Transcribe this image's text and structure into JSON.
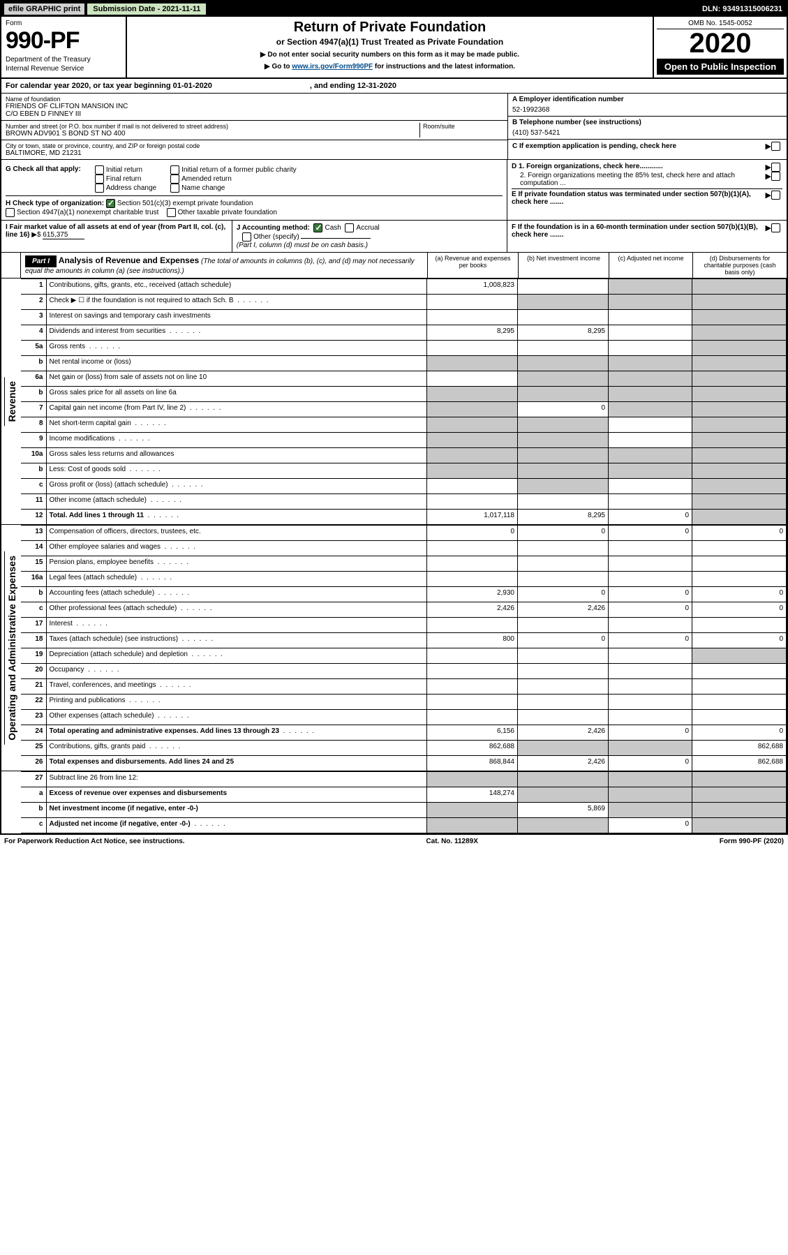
{
  "top": {
    "efile": "efile GRAPHIC print",
    "subdate_label": "Submission Date - 2021-11-11",
    "dln": "DLN: 93491315006231"
  },
  "header": {
    "form_label": "Form",
    "form_number": "990-PF",
    "dept": "Department of the Treasury",
    "irs": "Internal Revenue Service",
    "title": "Return of Private Foundation",
    "subtitle": "or Section 4947(a)(1) Trust Treated as Private Foundation",
    "note1": "▶ Do not enter social security numbers on this form as it may be made public.",
    "note2_pre": "▶ Go to ",
    "note2_link": "www.irs.gov/Form990PF",
    "note2_post": " for instructions and the latest information.",
    "omb": "OMB No. 1545-0052",
    "year": "2020",
    "open": "Open to Public Inspection"
  },
  "cal": {
    "line": "For calendar year 2020, or tax year beginning 01-01-2020",
    "ending": ", and ending 12-31-2020"
  },
  "entity": {
    "name_lbl": "Name of foundation",
    "name1": "FRIENDS OF CLIFTON MANSION INC",
    "name2": "C/O EBEN D FINNEY III",
    "addr_lbl": "Number and street (or P.O. box number if mail is not delivered to street address)",
    "addr": "BROWN ADV901 S BOND ST NO 400",
    "room_lbl": "Room/suite",
    "city_lbl": "City or town, state or province, country, and ZIP or foreign postal code",
    "city": "BALTIMORE, MD  21231",
    "ein_lbl": "A Employer identification number",
    "ein": "52-1992368",
    "tel_lbl": "B Telephone number (see instructions)",
    "tel": "(410) 537-5421",
    "c_lbl": "C If exemption application is pending, check here",
    "d1": "D 1. Foreign organizations, check here............",
    "d2": "2. Foreign organizations meeting the 85% test, check here and attach computation ...",
    "e": "E  If private foundation status was terminated under section 507(b)(1)(A), check here .......",
    "f": "F  If the foundation is in a 60-month termination under section 507(b)(1)(B), check here ......."
  },
  "g": {
    "label": "G Check all that apply:",
    "initial": "Initial return",
    "final": "Final return",
    "address": "Address change",
    "initial_former": "Initial return of a former public charity",
    "amended": "Amended return",
    "name": "Name change"
  },
  "h": {
    "label": "H Check type of organization:",
    "s501": "Section 501(c)(3) exempt private foundation",
    "s4947": "Section 4947(a)(1) nonexempt charitable trust",
    "other_tax": "Other taxable private foundation"
  },
  "i": {
    "label": "I Fair market value of all assets at end of year (from Part II, col. (c), line 16)",
    "val": "615,375"
  },
  "j": {
    "label": "J Accounting method:",
    "cash": "Cash",
    "accrual": "Accrual",
    "other": "Other (specify)",
    "note": "(Part I, column (d) must be on cash basis.)"
  },
  "part1": {
    "label": "Part I",
    "title": "Analysis of Revenue and Expenses",
    "note": " (The total of amounts in columns (b), (c), and (d) may not necessarily equal the amounts in column (a) (see instructions).)",
    "col_a": "(a)   Revenue and expenses per books",
    "col_b": "(b)   Net investment income",
    "col_c": "(c)   Adjusted net income",
    "col_d": "(d)  Disbursements for charitable purposes (cash basis only)"
  },
  "side": {
    "rev": "Revenue",
    "exp": "Operating and Administrative Expenses"
  },
  "rows": [
    {
      "n": "1",
      "d": "Contributions, gifts, grants, etc., received (attach schedule)",
      "a": "1,008,823",
      "b": "",
      "c": "grey",
      "dd": "grey"
    },
    {
      "n": "2",
      "d": "Check ▶ ☐ if the foundation is not required to attach Sch. B",
      "a": "",
      "b": "grey",
      "c": "grey",
      "dd": "grey",
      "dots": true
    },
    {
      "n": "3",
      "d": "Interest on savings and temporary cash investments",
      "a": "",
      "b": "",
      "c": "",
      "dd": "grey"
    },
    {
      "n": "4",
      "d": "Dividends and interest from securities",
      "a": "8,295",
      "b": "8,295",
      "c": "",
      "dd": "grey",
      "dots": true
    },
    {
      "n": "5a",
      "d": "Gross rents",
      "a": "",
      "b": "",
      "c": "",
      "dd": "grey",
      "dots": true
    },
    {
      "n": "b",
      "d": "Net rental income or (loss)",
      "a": "grey",
      "b": "grey",
      "c": "grey",
      "dd": "grey",
      "half": true
    },
    {
      "n": "6a",
      "d": "Net gain or (loss) from sale of assets not on line 10",
      "a": "",
      "b": "grey",
      "c": "grey",
      "dd": "grey"
    },
    {
      "n": "b",
      "d": "Gross sales price for all assets on line 6a",
      "a": "grey",
      "b": "grey",
      "c": "grey",
      "dd": "grey",
      "half": true
    },
    {
      "n": "7",
      "d": "Capital gain net income (from Part IV, line 2)",
      "a": "grey",
      "b": "0",
      "c": "grey",
      "dd": "grey",
      "dots": true
    },
    {
      "n": "8",
      "d": "Net short-term capital gain",
      "a": "grey",
      "b": "grey",
      "c": "",
      "dd": "grey",
      "dots": true
    },
    {
      "n": "9",
      "d": "Income modifications",
      "a": "grey",
      "b": "grey",
      "c": "",
      "dd": "grey",
      "dots": true
    },
    {
      "n": "10a",
      "d": "Gross sales less returns and allowances",
      "a": "grey",
      "b": "grey",
      "c": "grey",
      "dd": "grey",
      "half": true
    },
    {
      "n": "b",
      "d": "Less: Cost of goods sold",
      "a": "grey",
      "b": "grey",
      "c": "grey",
      "dd": "grey",
      "half": true,
      "dots": true
    },
    {
      "n": "c",
      "d": "Gross profit or (loss) (attach schedule)",
      "a": "",
      "b": "grey",
      "c": "",
      "dd": "grey",
      "dots": true
    },
    {
      "n": "11",
      "d": "Other income (attach schedule)",
      "a": "",
      "b": "",
      "c": "",
      "dd": "grey",
      "dots": true
    },
    {
      "n": "12",
      "d": "Total. Add lines 1 through 11",
      "a": "1,017,118",
      "b": "8,295",
      "c": "0",
      "dd": "grey",
      "bold": true,
      "dots": true
    }
  ],
  "exp_rows": [
    {
      "n": "13",
      "d": "Compensation of officers, directors, trustees, etc.",
      "a": "0",
      "b": "0",
      "c": "0",
      "dd": "0"
    },
    {
      "n": "14",
      "d": "Other employee salaries and wages",
      "a": "",
      "b": "",
      "c": "",
      "dd": "",
      "dots": true
    },
    {
      "n": "15",
      "d": "Pension plans, employee benefits",
      "a": "",
      "b": "",
      "c": "",
      "dd": "",
      "dots": true
    },
    {
      "n": "16a",
      "d": "Legal fees (attach schedule)",
      "a": "",
      "b": "",
      "c": "",
      "dd": "",
      "dots": true
    },
    {
      "n": "b",
      "d": "Accounting fees (attach schedule)",
      "a": "2,930",
      "b": "0",
      "c": "0",
      "dd": "0",
      "dots": true
    },
    {
      "n": "c",
      "d": "Other professional fees (attach schedule)",
      "a": "2,426",
      "b": "2,426",
      "c": "0",
      "dd": "0",
      "dots": true
    },
    {
      "n": "17",
      "d": "Interest",
      "a": "",
      "b": "",
      "c": "",
      "dd": "",
      "dots": true
    },
    {
      "n": "18",
      "d": "Taxes (attach schedule) (see instructions)",
      "a": "800",
      "b": "0",
      "c": "0",
      "dd": "0",
      "dots": true
    },
    {
      "n": "19",
      "d": "Depreciation (attach schedule) and depletion",
      "a": "",
      "b": "",
      "c": "",
      "dd": "grey",
      "dots": true
    },
    {
      "n": "20",
      "d": "Occupancy",
      "a": "",
      "b": "",
      "c": "",
      "dd": "",
      "dots": true
    },
    {
      "n": "21",
      "d": "Travel, conferences, and meetings",
      "a": "",
      "b": "",
      "c": "",
      "dd": "",
      "dots": true
    },
    {
      "n": "22",
      "d": "Printing and publications",
      "a": "",
      "b": "",
      "c": "",
      "dd": "",
      "dots": true
    },
    {
      "n": "23",
      "d": "Other expenses (attach schedule)",
      "a": "",
      "b": "",
      "c": "",
      "dd": "",
      "dots": true
    },
    {
      "n": "24",
      "d": "Total operating and administrative expenses. Add lines 13 through 23",
      "a": "6,156",
      "b": "2,426",
      "c": "0",
      "dd": "0",
      "bold": true,
      "dots": true
    },
    {
      "n": "25",
      "d": "Contributions, gifts, grants paid",
      "a": "862,688",
      "b": "grey",
      "c": "grey",
      "dd": "862,688",
      "dots": true
    },
    {
      "n": "26",
      "d": "Total expenses and disbursements. Add lines 24 and 25",
      "a": "868,844",
      "b": "2,426",
      "c": "0",
      "dd": "862,688",
      "bold": true
    }
  ],
  "rows27": [
    {
      "n": "27",
      "d": "Subtract line 26 from line 12:",
      "a": "grey",
      "b": "grey",
      "c": "grey",
      "dd": "grey"
    },
    {
      "n": "a",
      "d": "Excess of revenue over expenses and disbursements",
      "a": "148,274",
      "b": "grey",
      "c": "grey",
      "dd": "grey",
      "bold": true
    },
    {
      "n": "b",
      "d": "Net investment income (if negative, enter -0-)",
      "a": "grey",
      "b": "5,869",
      "c": "grey",
      "dd": "grey",
      "bold": true
    },
    {
      "n": "c",
      "d": "Adjusted net income (if negative, enter -0-)",
      "a": "grey",
      "b": "grey",
      "c": "0",
      "dd": "grey",
      "bold": true,
      "dots": true
    }
  ],
  "footer": {
    "left": "For Paperwork Reduction Act Notice, see instructions.",
    "mid": "Cat. No. 11289X",
    "right": "Form 990-PF (2020)"
  }
}
